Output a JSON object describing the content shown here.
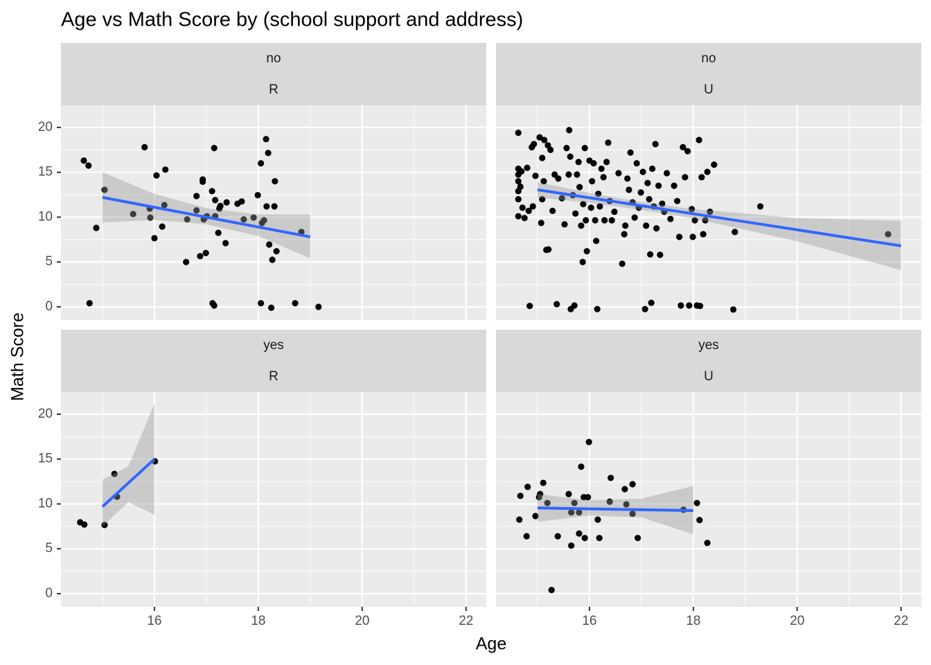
{
  "chart_data": {
    "type": "scatter",
    "title": "Age vs Math Score by (school support and address)",
    "x_label": "Age",
    "y_label": "Math Score",
    "xlim": [
      14.2,
      22.39
    ],
    "ylim": [
      -1.47,
      22.47
    ],
    "xticks": [
      16,
      18,
      20,
      22
    ],
    "yticks": [
      0,
      5,
      10,
      15,
      20
    ],
    "minor_xticks": [
      15,
      17,
      19,
      21
    ],
    "minor_yticks": [
      2.5,
      7.5,
      12.5,
      17.5
    ],
    "grid": true,
    "point_color": "#000000",
    "fit_color": "#3366ff",
    "band_color": "#999999",
    "panels": [
      {
        "strips": [
          "no",
          "R"
        ],
        "x": [
          14.64,
          14.73,
          15.04,
          14.88,
          14.75,
          15.59,
          15.81,
          15.91,
          15.92,
          16.0,
          16.04,
          16.15,
          16.19,
          16.21,
          16.61,
          16.63,
          16.81,
          16.81,
          16.88,
          16.93,
          16.93,
          16.95,
          16.99,
          17.01,
          17.11,
          17.12,
          17.15,
          17.15,
          17.17,
          17.17,
          17.23,
          17.25,
          17.27,
          17.37,
          17.39,
          17.6,
          17.68,
          17.72,
          17.91,
          17.99,
          18.05,
          18.05,
          18.07,
          18.11,
          18.15,
          18.16,
          18.19,
          18.21,
          18.25,
          18.27,
          18.31,
          18.32,
          18.35,
          18.71,
          18.83,
          19.16
        ],
        "values": [
          16.3,
          15.75,
          13.05,
          8.8,
          0.4,
          10.35,
          17.8,
          10.95,
          9.95,
          7.65,
          14.65,
          8.95,
          11.35,
          15.3,
          5.0,
          9.75,
          12.35,
          10.75,
          5.65,
          14.2,
          13.95,
          9.75,
          6.0,
          10.1,
          12.9,
          0.4,
          17.7,
          0.15,
          11.9,
          10.1,
          8.25,
          10.95,
          11.25,
          7.1,
          11.65,
          11.5,
          11.75,
          9.75,
          9.95,
          12.45,
          16.0,
          0.4,
          9.35,
          9.65,
          18.7,
          11.2,
          17.15,
          6.95,
          -0.1,
          5.25,
          11.2,
          14.0,
          6.2,
          0.4,
          8.35,
          0.0
        ],
        "fit": {
          "x": [
            15,
            16,
            17,
            18,
            19
          ],
          "values": [
            12.2,
            11.1,
            10.0,
            8.9,
            7.8
          ],
          "lower": [
            9.4,
            9.7,
            9.2,
            7.9,
            5.4
          ],
          "upper": [
            15.0,
            12.6,
            11.0,
            10.3,
            10.3
          ]
        }
      },
      {
        "strips": [
          "no",
          "U"
        ],
        "x": [
          14.63,
          14.63,
          14.63,
          14.63,
          14.63,
          14.63,
          14.63,
          14.67,
          14.69,
          14.71,
          14.75,
          14.8,
          14.83,
          14.85,
          14.89,
          14.91,
          14.93,
          14.96,
          15.04,
          15.07,
          15.09,
          15.09,
          15.12,
          15.13,
          15.17,
          15.2,
          15.21,
          15.25,
          15.29,
          15.33,
          15.37,
          15.4,
          15.47,
          15.52,
          15.56,
          15.6,
          15.61,
          15.63,
          15.64,
          15.68,
          15.71,
          15.73,
          15.76,
          15.79,
          15.81,
          15.84,
          15.87,
          15.88,
          15.91,
          15.93,
          15.95,
          16.0,
          16.03,
          16.05,
          16.08,
          16.11,
          16.13,
          16.15,
          16.17,
          16.2,
          16.23,
          16.27,
          16.29,
          16.33,
          16.36,
          16.39,
          16.43,
          16.48,
          16.56,
          16.63,
          16.67,
          16.69,
          16.73,
          16.76,
          16.79,
          16.83,
          16.87,
          16.91,
          16.95,
          16.99,
          17.03,
          17.07,
          17.09,
          17.12,
          17.15,
          17.17,
          17.19,
          17.21,
          17.24,
          17.27,
          17.29,
          17.33,
          17.36,
          17.4,
          17.44,
          17.49,
          17.56,
          17.63,
          17.69,
          17.73,
          17.76,
          17.8,
          17.84,
          17.89,
          17.92,
          17.97,
          17.99,
          18.03,
          18.07,
          18.11,
          18.13,
          18.16,
          18.19,
          18.23,
          18.27,
          18.32,
          18.4,
          18.8,
          18.77,
          19.29,
          21.75
        ],
        "values": [
          19.4,
          15.4,
          14.75,
          14.0,
          12.9,
          12.0,
          10.1,
          13.4,
          15.1,
          11.05,
          9.9,
          15.5,
          10.7,
          0.1,
          17.8,
          11.2,
          18.15,
          14.6,
          18.9,
          9.35,
          16.6,
          12.0,
          14.0,
          18.6,
          6.35,
          18.0,
          6.4,
          17.5,
          10.7,
          14.75,
          0.3,
          14.3,
          12.1,
          9.2,
          17.7,
          14.75,
          19.7,
          16.75,
          -0.25,
          12.45,
          0.15,
          10.4,
          14.75,
          16.15,
          13.35,
          9.05,
          5.0,
          11.45,
          17.7,
          9.65,
          6.2,
          16.3,
          11.05,
          14.0,
          16.0,
          9.65,
          7.35,
          -0.25,
          12.6,
          11.2,
          15.4,
          14.45,
          9.65,
          16.15,
          18.3,
          11.8,
          9.65,
          10.6,
          14.9,
          4.8,
          8.1,
          9.05,
          14.3,
          13.05,
          17.2,
          11.65,
          9.95,
          16.0,
          11.05,
          12.75,
          15.05,
          -0.25,
          9.05,
          13.8,
          12.0,
          5.85,
          0.45,
          15.4,
          11.2,
          18.15,
          8.75,
          13.5,
          5.8,
          11.5,
          10.6,
          14.9,
          9.8,
          13.5,
          11.8,
          7.8,
          0.15,
          17.8,
          14.45,
          17.35,
          0.15,
          10.9,
          7.8,
          9.65,
          0.15,
          18.6,
          0.1,
          14.45,
          8.1,
          9.65,
          15.05,
          10.6,
          15.85,
          8.35,
          -0.3,
          11.2,
          8.1
        ],
        "fit": {
          "x": [
            15,
            16,
            17,
            18,
            19,
            20,
            21,
            22
          ],
          "values": [
            13.05,
            12.16,
            11.27,
            10.37,
            9.48,
            8.59,
            7.69,
            6.8
          ],
          "lower": [
            12.2,
            11.6,
            10.8,
            9.85,
            8.6,
            7.3,
            5.7,
            4.1
          ],
          "upper": [
            13.9,
            12.7,
            11.7,
            10.9,
            10.4,
            9.9,
            9.75,
            9.6
          ]
        }
      },
      {
        "strips": [
          "yes",
          "R"
        ],
        "x": [
          14.57,
          14.65,
          15.04,
          15.23,
          15.28,
          16.01
        ],
        "values": [
          7.95,
          7.7,
          7.65,
          13.35,
          10.8,
          14.75
        ],
        "fit": {
          "x": [
            15,
            15.5,
            16
          ],
          "values": [
            9.7,
            12.35,
            15.0
          ],
          "lower": [
            7.5,
            10.2,
            8.8
          ],
          "upper": [
            12.7,
            14.2,
            21.2
          ]
        }
      },
      {
        "strips": [
          "yes",
          "U"
        ],
        "x": [
          14.67,
          14.65,
          14.79,
          14.81,
          14.96,
          15.03,
          15.05,
          15.11,
          15.19,
          15.27,
          15.39,
          15.6,
          15.65,
          15.65,
          15.71,
          15.8,
          15.8,
          15.84,
          15.89,
          15.91,
          15.97,
          15.99,
          16.16,
          16.19,
          16.39,
          16.41,
          16.68,
          16.71,
          16.83,
          16.83,
          16.93,
          17.81,
          18.07,
          18.12,
          18.27
        ],
        "values": [
          10.9,
          8.25,
          6.4,
          11.9,
          8.65,
          10.75,
          11.1,
          12.35,
          10.1,
          0.4,
          6.4,
          11.1,
          9.05,
          5.35,
          10.1,
          6.7,
          9.05,
          14.15,
          10.75,
          6.2,
          10.75,
          16.9,
          8.25,
          6.2,
          10.25,
          12.9,
          11.65,
          9.95,
          12.2,
          8.9,
          6.2,
          9.35,
          10.1,
          8.2,
          5.65
        ],
        "fit": {
          "x": [
            15,
            16,
            17,
            18
          ],
          "values": [
            9.55,
            9.45,
            9.35,
            9.25
          ],
          "lower": [
            8.0,
            8.7,
            8.5,
            6.6
          ],
          "upper": [
            11.1,
            10.4,
            10.6,
            12.0
          ]
        }
      }
    ]
  }
}
